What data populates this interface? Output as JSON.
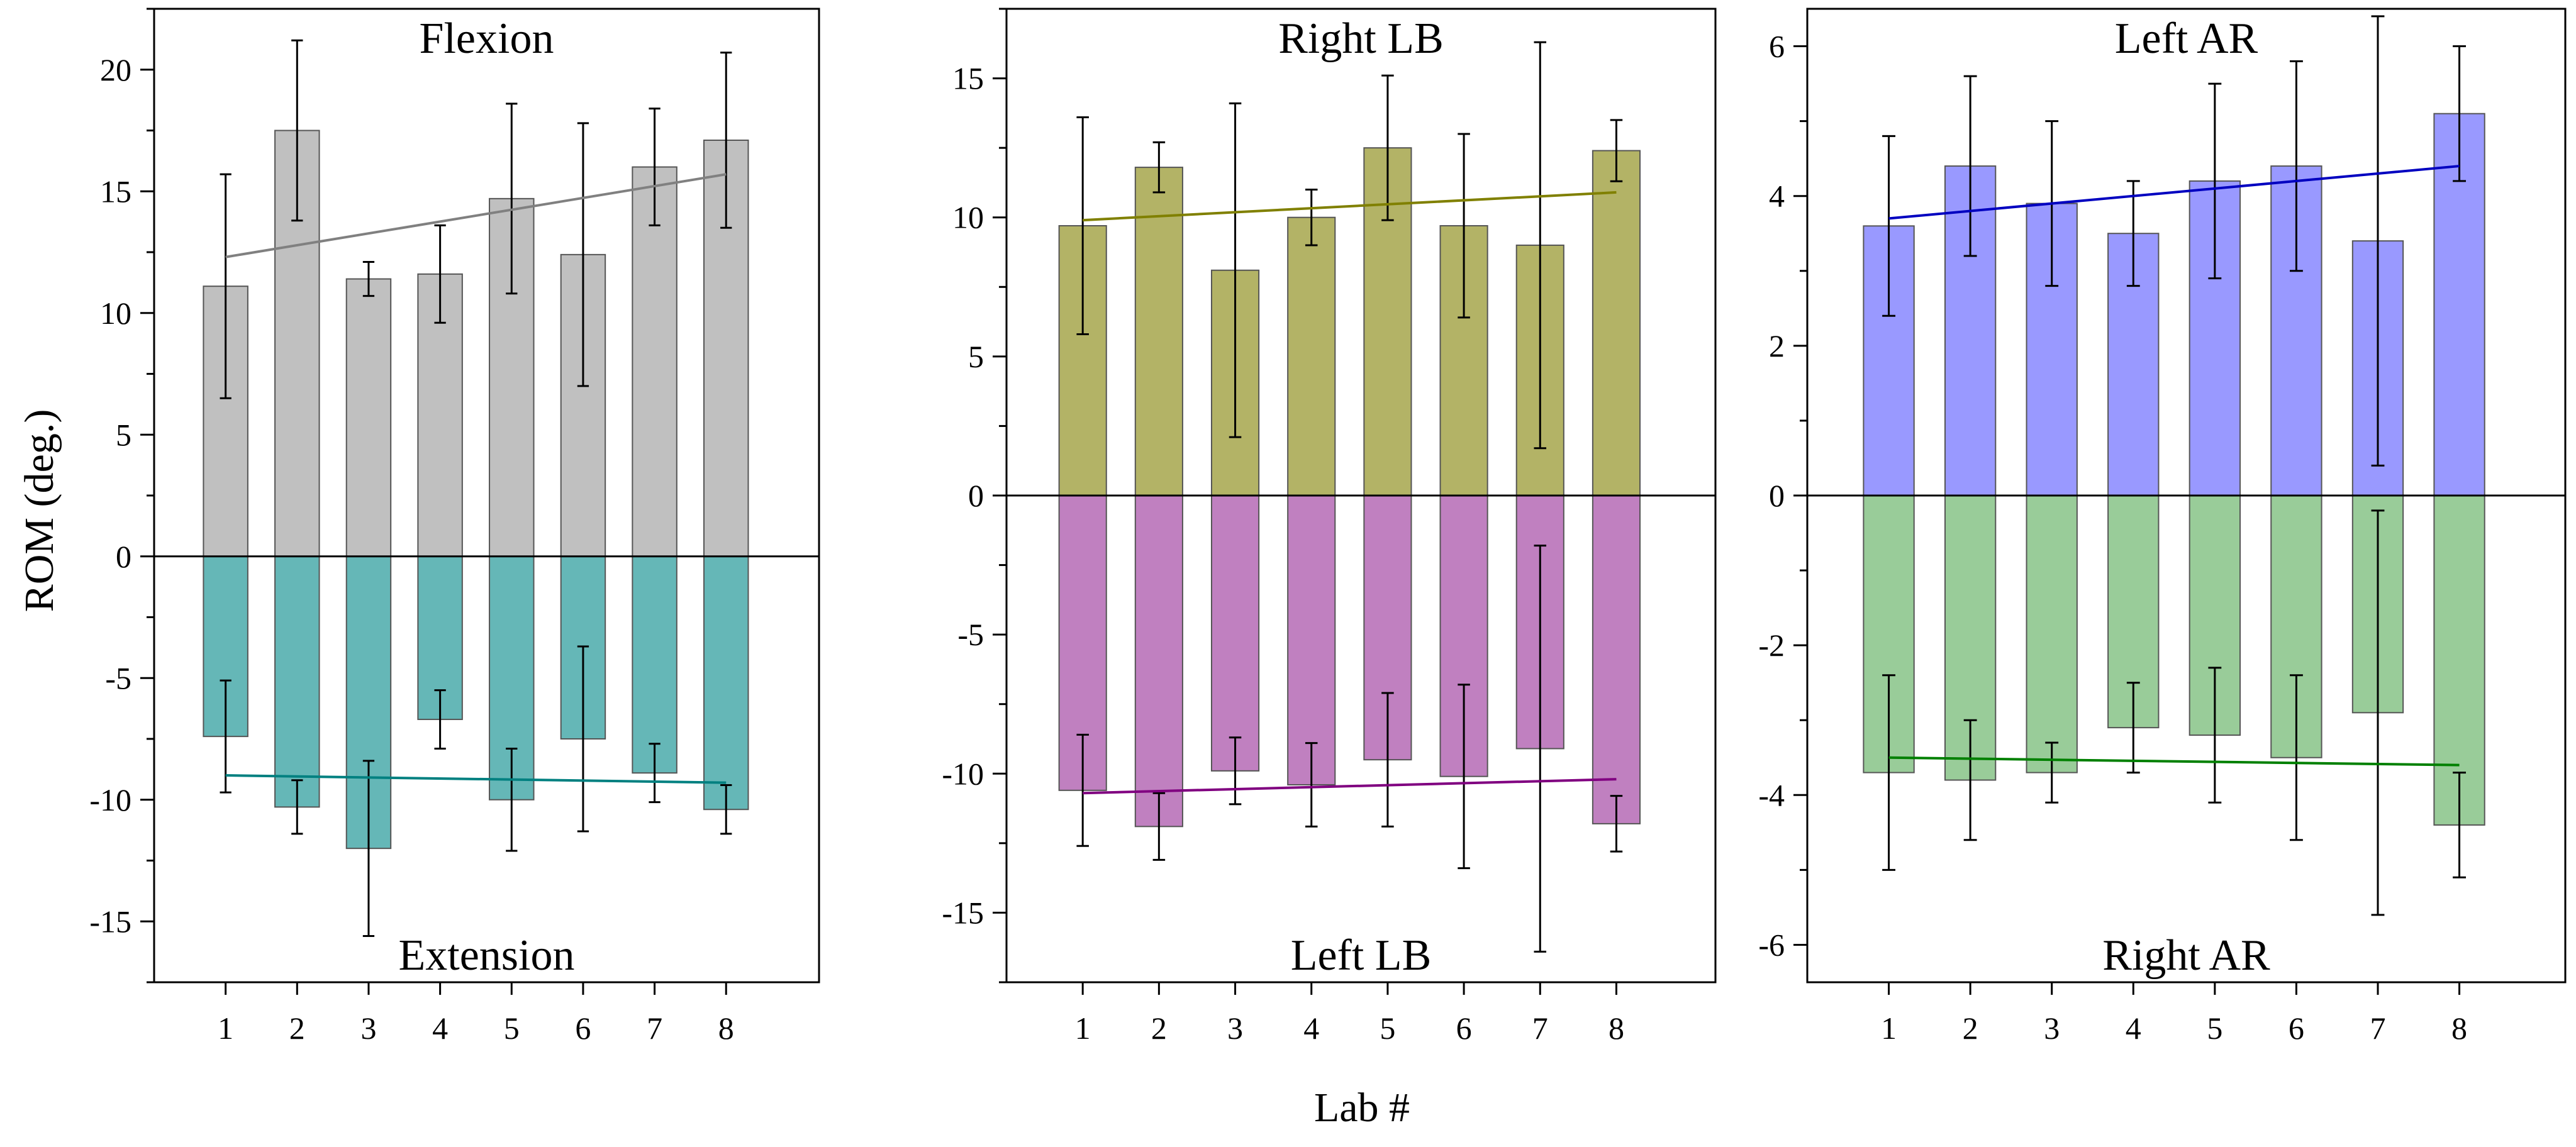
{
  "figure": {
    "ylabel": "ROM (deg.)",
    "xlabel": "Lab #"
  },
  "chart_data": [
    {
      "type": "bar",
      "categories": [
        "1",
        "2",
        "3",
        "4",
        "5",
        "6",
        "7",
        "8"
      ],
      "ylim": [
        -17.5,
        22.5
      ],
      "yticks": [
        -15,
        -10,
        -5,
        0,
        5,
        10,
        15,
        20
      ],
      "ytick_labels": [
        "-15",
        "-10",
        "-5",
        "0",
        "5",
        "10",
        "15",
        "20"
      ],
      "grid": false,
      "series": [
        {
          "name": "Flexion",
          "label_position": "top",
          "color": "#c0c0c0",
          "trend_color": "#808080",
          "values": [
            11.1,
            17.5,
            11.4,
            11.6,
            14.7,
            12.4,
            16.0,
            17.1
          ],
          "errors": [
            4.6,
            3.7,
            0.7,
            2.0,
            3.9,
            5.4,
            2.4,
            3.6
          ],
          "trend": [
            12.3,
            15.7
          ]
        },
        {
          "name": "Extension",
          "label_position": "bottom",
          "color": "#65b7b7",
          "trend_color": "#008080",
          "values": [
            -7.4,
            -10.3,
            -12.0,
            -6.7,
            -10.0,
            -7.5,
            -8.9,
            -10.4
          ],
          "errors": [
            2.3,
            1.1,
            3.6,
            1.2,
            2.1,
            3.8,
            1.2,
            1.0
          ],
          "trend": [
            -9.0,
            -9.3
          ]
        }
      ]
    },
    {
      "type": "bar",
      "categories": [
        "1",
        "2",
        "3",
        "4",
        "5",
        "6",
        "7",
        "8"
      ],
      "ylim": [
        -17.5,
        17.5
      ],
      "yticks": [
        -15,
        -10,
        -5,
        0,
        5,
        10,
        15
      ],
      "ytick_labels": [
        "-15",
        "-10",
        "-5",
        "0",
        "5",
        "10",
        "15"
      ],
      "grid": false,
      "series": [
        {
          "name": "Right LB",
          "label_position": "top",
          "color": "#b3b366",
          "trend_color": "#808000",
          "values": [
            9.7,
            11.8,
            8.1,
            10.0,
            12.5,
            9.7,
            9.0,
            12.4
          ],
          "errors": [
            3.9,
            0.9,
            6.0,
            1.0,
            2.6,
            3.3,
            7.3,
            1.1
          ],
          "trend": [
            9.9,
            10.9
          ]
        },
        {
          "name": "Left LB",
          "label_position": "bottom",
          "color": "#c080c0",
          "trend_color": "#800080",
          "values": [
            -10.6,
            -11.9,
            -9.9,
            -10.4,
            -9.5,
            -10.1,
            -9.1,
            -11.8
          ],
          "errors": [
            2.0,
            1.2,
            1.2,
            1.5,
            2.4,
            3.3,
            7.3,
            1.0
          ],
          "trend": [
            -10.7,
            -10.2
          ]
        }
      ]
    },
    {
      "type": "bar",
      "categories": [
        "1",
        "2",
        "3",
        "4",
        "5",
        "6",
        "7",
        "8"
      ],
      "ylim": [
        -6.5,
        6.5
      ],
      "yticks": [
        -6,
        -4,
        -2,
        0,
        2,
        4,
        6
      ],
      "ytick_labels": [
        "-6",
        "-4",
        "-2",
        "0",
        "2",
        "4",
        "6"
      ],
      "grid": false,
      "series": [
        {
          "name": "Left AR",
          "label_position": "top",
          "color": "#9999ff",
          "trend_color": "#0000c0",
          "values": [
            3.6,
            4.4,
            3.9,
            3.5,
            4.2,
            4.4,
            3.4,
            5.1
          ],
          "errors": [
            1.2,
            1.2,
            1.1,
            0.7,
            1.3,
            1.4,
            3.0,
            0.9
          ],
          "trend": [
            3.7,
            4.4
          ]
        },
        {
          "name": "Right AR",
          "label_position": "bottom",
          "color": "#99cc99",
          "trend_color": "#008000",
          "values": [
            -3.7,
            -3.8,
            -3.7,
            -3.1,
            -3.2,
            -3.5,
            -2.9,
            -4.4
          ],
          "errors": [
            1.3,
            0.8,
            0.4,
            0.6,
            0.9,
            1.1,
            2.7,
            0.7
          ],
          "trend": [
            -3.5,
            -3.6
          ]
        }
      ]
    }
  ]
}
